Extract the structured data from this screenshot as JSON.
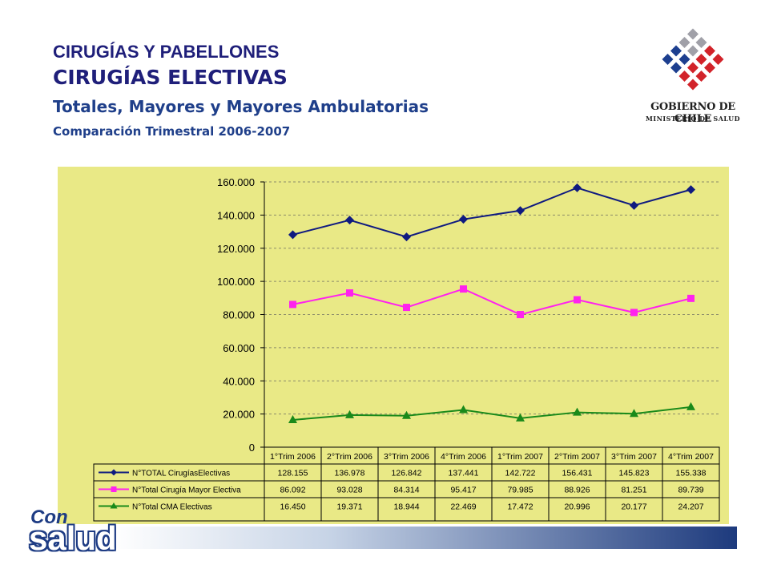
{
  "header": {
    "title": "CIRUGÍAS Y PABELLONES",
    "subtitle": "CIRUGÍAS ELECTIVAS",
    "subtitle2": "Totales, Mayores y Mayores Ambulatorias",
    "subtitle3": "Comparación Trimestral 2006-2007"
  },
  "logo": {
    "name": "GOBIERNO DE CHILE",
    "sub": "MINISTERIO DE SALUD",
    "colors": {
      "blue": "#1d3f8f",
      "red": "#d2232a",
      "grey": "#a0a0a8"
    }
  },
  "brand": {
    "line1": "Con",
    "line2": "salud",
    "color": "#1e3c84"
  },
  "colors": {
    "panel": "#e9e986",
    "title": "#1f1f7a"
  },
  "chart_data": {
    "type": "line",
    "title": "",
    "xlabel": "",
    "ylabel": "",
    "ylim": [
      0,
      160000
    ],
    "ytick_labels": [
      "0",
      "20.000",
      "40.000",
      "60.000",
      "80.000",
      "100.000",
      "120.000",
      "140.000",
      "160.000"
    ],
    "categories": [
      "1°Trim 2006",
      "2°Trim 2006",
      "3°Trim 2006",
      "4°Trim 2006",
      "1°Trim 2007",
      "2°Trim 2007",
      "3°Trim 2007",
      "4°Trim 2007"
    ],
    "grid": true,
    "legend": "table-below",
    "series": [
      {
        "name": "N°TOTAL CirugíasElectivas",
        "color": "#0f1a80",
        "marker": "diamond",
        "values": [
          128155,
          136978,
          126842,
          137441,
          142722,
          156431,
          145823,
          155338
        ],
        "labels": [
          "128.155",
          "136.978",
          "126.842",
          "137.441",
          "142.722",
          "156.431",
          "145.823",
          "155.338"
        ]
      },
      {
        "name": "N°Total Cirugía Mayor Electiva",
        "color": "#ff22ee",
        "marker": "square",
        "values": [
          86092,
          93028,
          84314,
          95417,
          79985,
          88926,
          81251,
          89739
        ],
        "labels": [
          "86.092",
          "93.028",
          "84.314",
          "95.417",
          "79.985",
          "88.926",
          "81.251",
          "89.739"
        ]
      },
      {
        "name": "N°Total CMA Electivas",
        "color": "#1a8a1a",
        "marker": "triangle",
        "values": [
          16450,
          19371,
          18944,
          22469,
          17472,
          20996,
          20177,
          24207
        ],
        "labels": [
          "16.450",
          "19.371",
          "18.944",
          "22.469",
          "17.472",
          "20.996",
          "20.177",
          "24.207"
        ]
      }
    ]
  }
}
